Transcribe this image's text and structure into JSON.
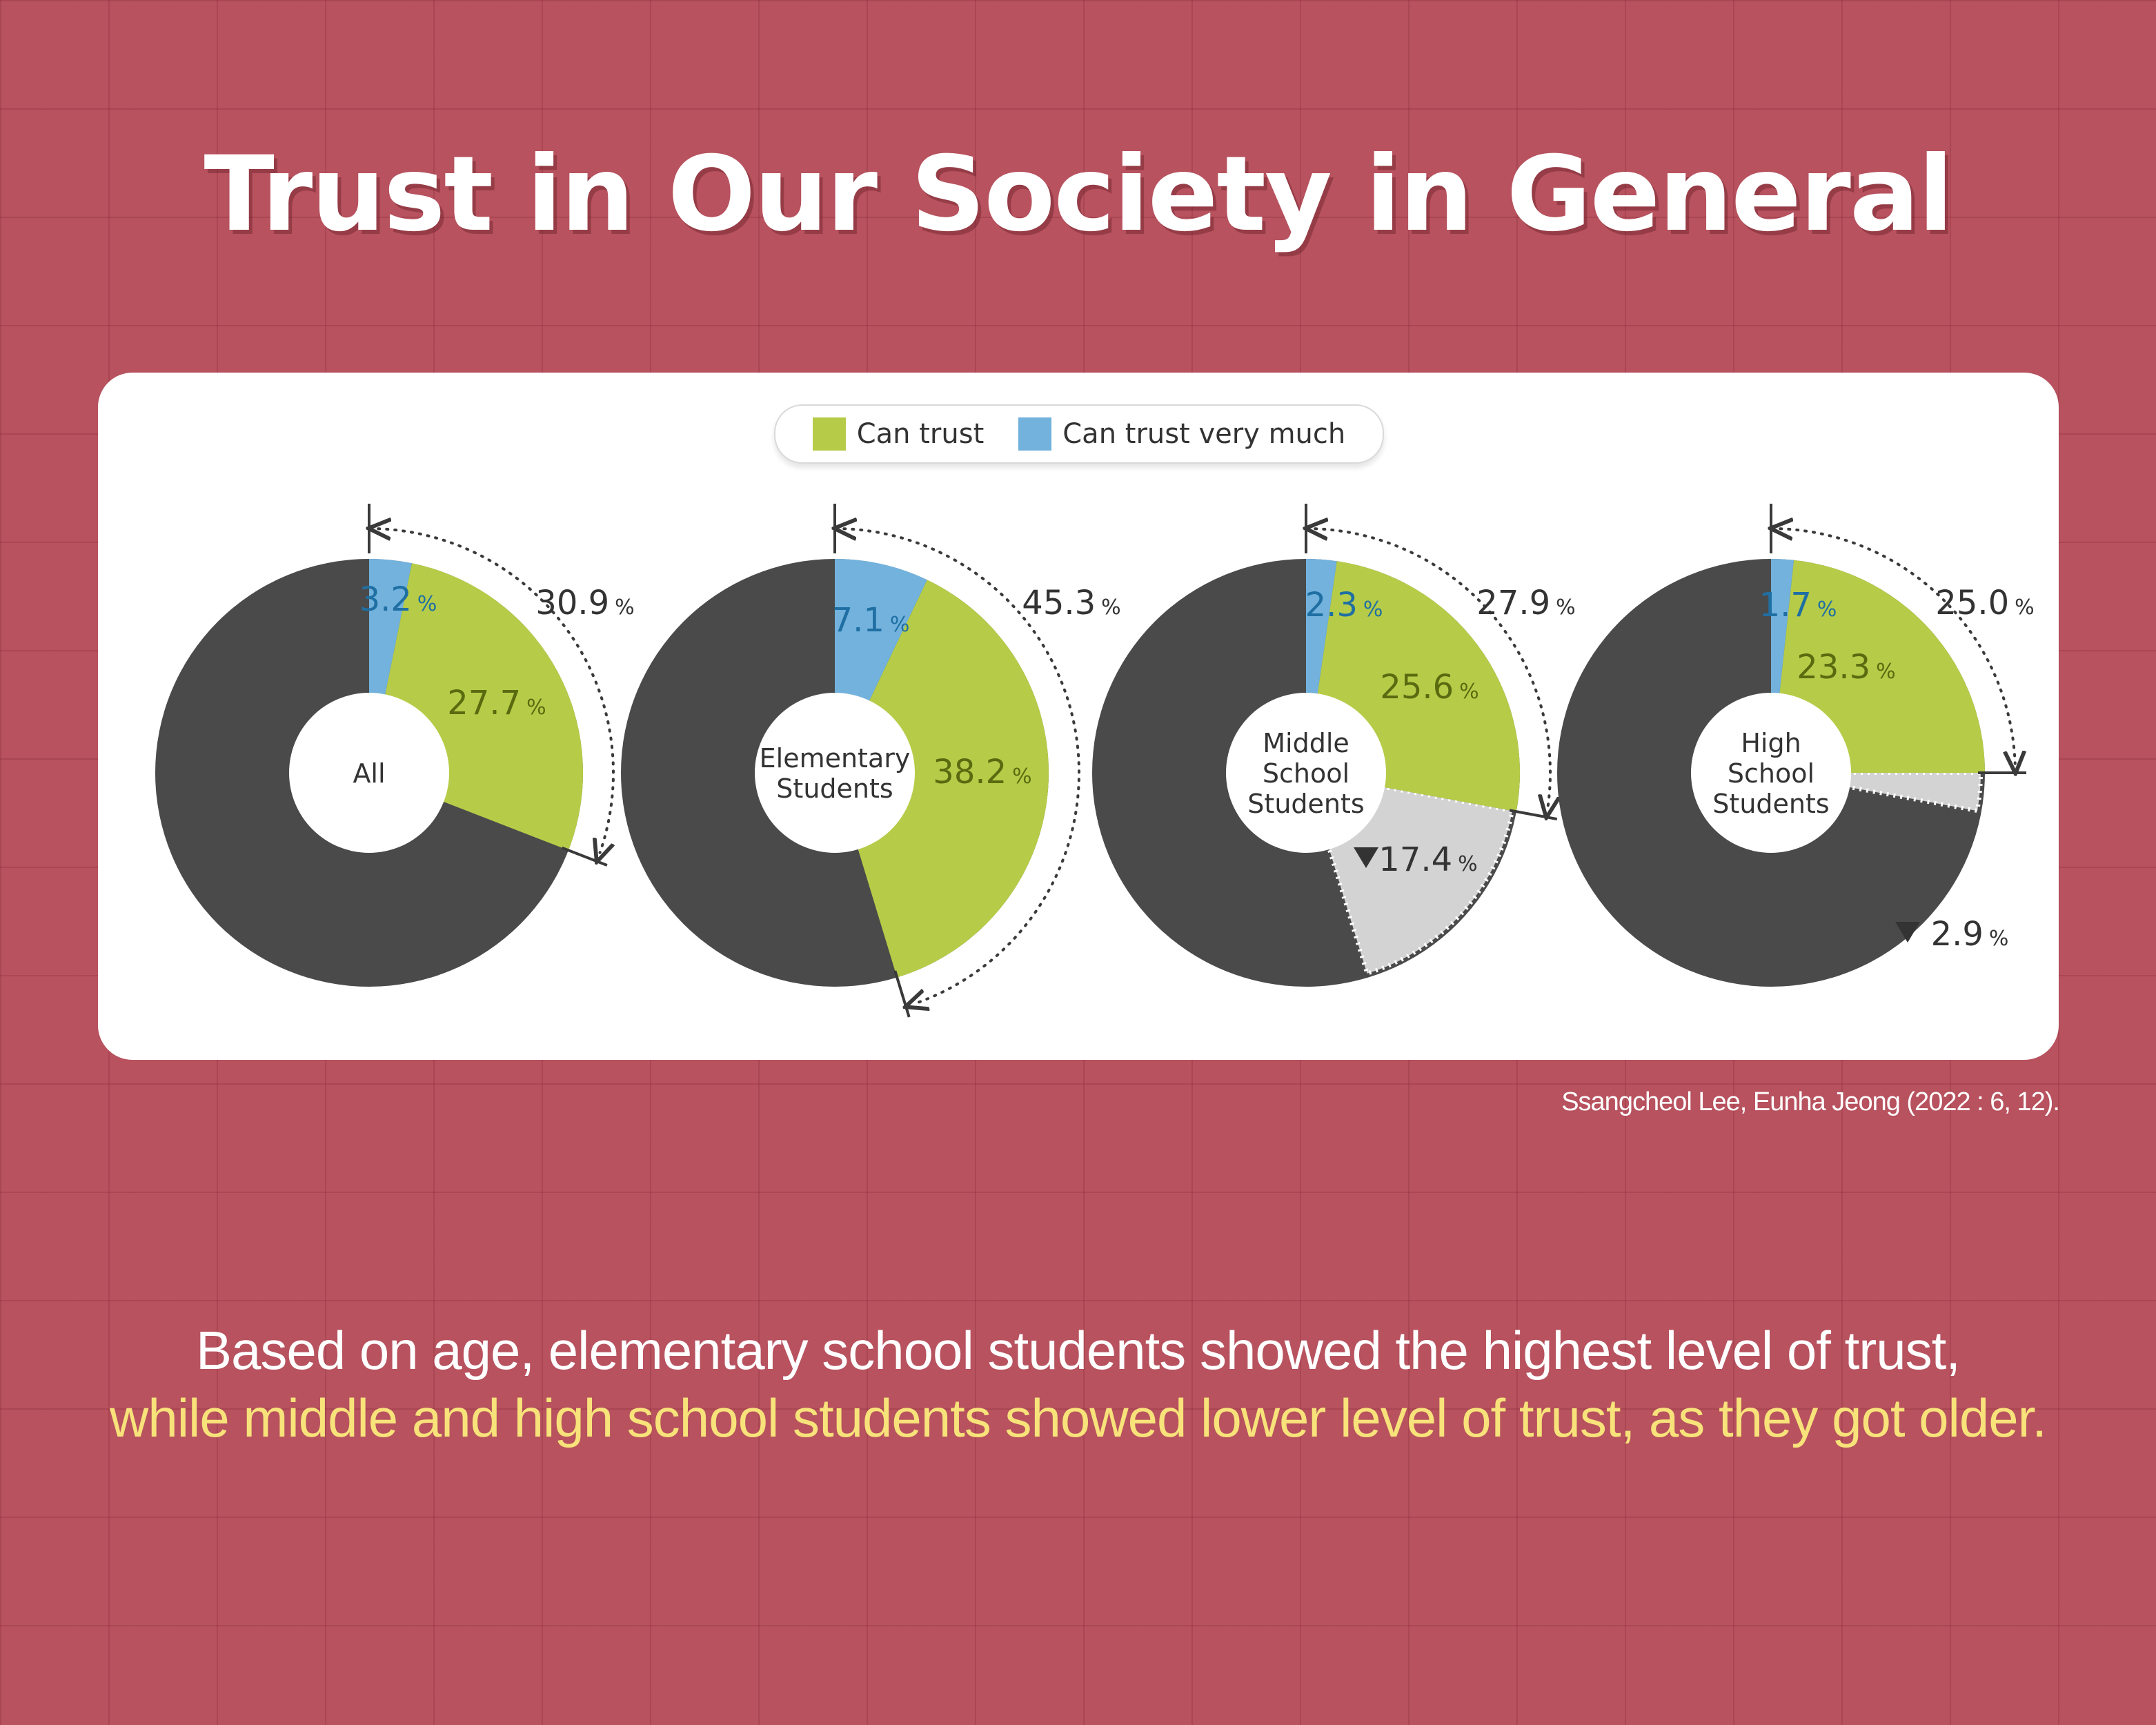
{
  "title": "Trust in Our Society in General",
  "legend": {
    "can_trust": "Can trust",
    "can_trust_very_much": "Can trust very much"
  },
  "colors": {
    "can_trust": "#b6cc48",
    "can_trust_very_much": "#72b2dd",
    "other": "#4a4a4a",
    "decrease": "#d3d3d3",
    "can_trust_label": "#5a6a10",
    "very_much_label": "#1f6fa3",
    "total_label": "#333333"
  },
  "chart_data": {
    "type": "pie",
    "unit": "%",
    "series": [
      {
        "name": "Can trust",
        "values": [
          27.7,
          38.2,
          25.6,
          23.3
        ]
      },
      {
        "name": "Can trust very much",
        "values": [
          3.2,
          7.1,
          2.3,
          1.7
        ]
      }
    ],
    "categories": [
      "All",
      "Elementary Students",
      "Middle School Students",
      "High School Students"
    ],
    "groups": [
      {
        "center_label": [
          "All"
        ],
        "very_much": 3.2,
        "trust": 27.7,
        "total": 30.9,
        "decrease": null
      },
      {
        "center_label": [
          "Elementary",
          "Students"
        ],
        "very_much": 7.1,
        "trust": 38.2,
        "total": 45.3,
        "decrease": null
      },
      {
        "center_label": [
          "Middle",
          "School",
          "Students"
        ],
        "very_much": 2.3,
        "trust": 25.6,
        "total": 27.9,
        "decrease": 17.4
      },
      {
        "center_label": [
          "High",
          "School",
          "Students"
        ],
        "very_much": 1.7,
        "trust": 23.3,
        "total": 25.0,
        "decrease": 2.9
      }
    ]
  },
  "source": "Ssangcheol Lee, Eunha Jeong (2022 : 6, 12).",
  "caption": {
    "line1": "Based on age, elementary school students showed the highest level of trust,",
    "line2": "while middle and high school students showed lower level of trust, as they got older."
  }
}
